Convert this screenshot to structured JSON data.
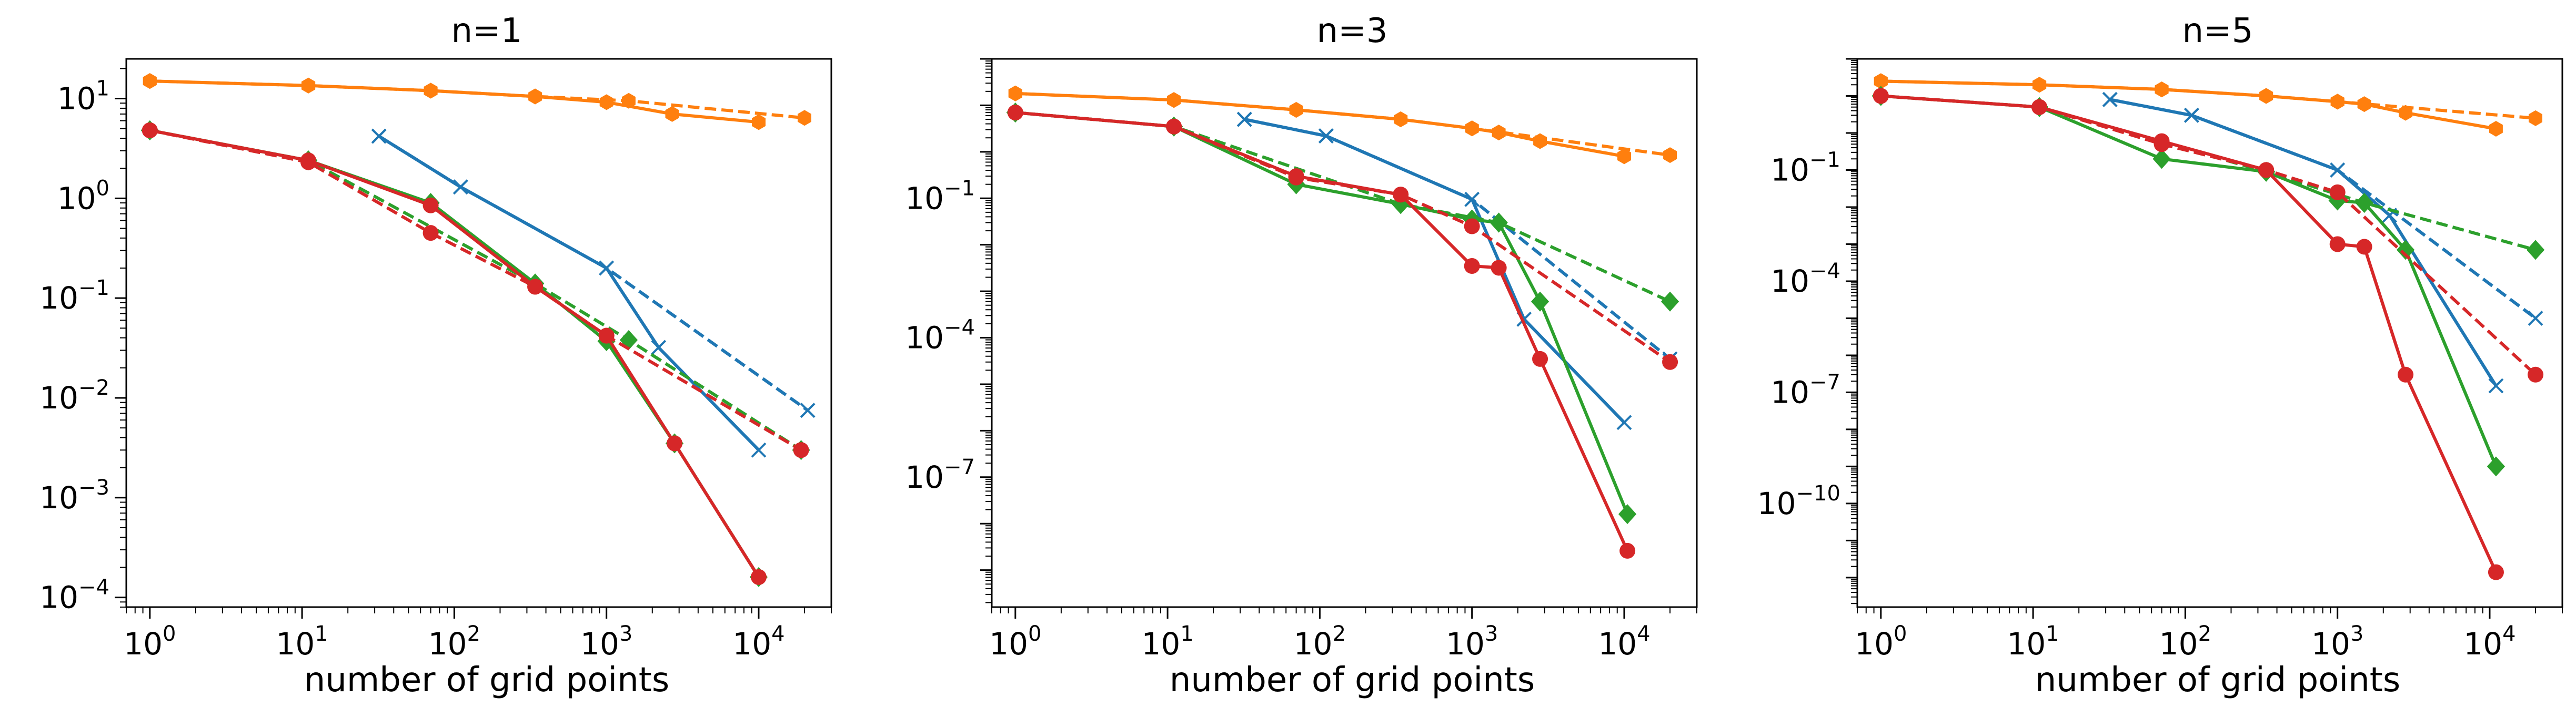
{
  "chart_data": [
    {
      "type": "line",
      "title": "n=1",
      "xlabel": "number of grid points",
      "ylabel": "",
      "xscale": "log",
      "yscale": "log",
      "xlim": [
        0.7,
        30000
      ],
      "ylim": [
        8e-05,
        25
      ],
      "x_ticks": [
        {
          "base": "10",
          "exp": "0",
          "value": 1
        },
        {
          "base": "10",
          "exp": "1",
          "value": 10
        },
        {
          "base": "10",
          "exp": "2",
          "value": 100
        },
        {
          "base": "10",
          "exp": "3",
          "value": 1000
        },
        {
          "base": "10",
          "exp": "4",
          "value": 10000
        }
      ],
      "y_ticks": [
        {
          "base": "10",
          "exp": "1",
          "value": 10
        },
        {
          "base": "10",
          "exp": "0",
          "value": 1
        },
        {
          "base": "10",
          "exp": "−1",
          "value": 0.1
        },
        {
          "base": "10",
          "exp": "−2",
          "value": 0.01
        },
        {
          "base": "10",
          "exp": "−3",
          "value": 0.001
        },
        {
          "base": "10",
          "exp": "−4",
          "value": 0.0001
        }
      ],
      "grid": false,
      "series": [
        {
          "color": "#ff7f0e",
          "dash": "solid",
          "marker": "hex",
          "x": [
            1,
            11,
            70,
            340,
            1000,
            2700,
            10000
          ],
          "y": [
            15,
            13.5,
            12,
            10.5,
            9.2,
            7,
            5.8
          ]
        },
        {
          "color": "#ff7f0e",
          "dash": "dashed",
          "marker": "hex",
          "x": [
            1,
            11,
            70,
            340,
            1400,
            20000
          ],
          "y": [
            15,
            13.5,
            12,
            10.5,
            9.5,
            6.4
          ]
        },
        {
          "color": "#1f77b4",
          "dash": "solid",
          "marker": "x",
          "x": [
            32,
            110,
            1000,
            2200,
            10000
          ],
          "y": [
            4.2,
            1.3,
            0.2,
            0.032,
            0.003
          ]
        },
        {
          "color": "#1f77b4",
          "dash": "dashed",
          "marker": "x",
          "x": [
            32,
            110,
            1000,
            21000
          ],
          "y": [
            4.2,
            1.3,
            0.2,
            0.0075
          ]
        },
        {
          "color": "#2ca02c",
          "dash": "solid",
          "marker": "diamond",
          "x": [
            1,
            11,
            70,
            340,
            1000,
            2800,
            10000
          ],
          "y": [
            4.8,
            2.4,
            0.9,
            0.14,
            0.037,
            0.0035,
            0.00016
          ]
        },
        {
          "color": "#2ca02c",
          "dash": "dashed",
          "marker": "diamond",
          "x": [
            1,
            11,
            340,
            1400,
            19000
          ],
          "y": [
            4.8,
            2.4,
            0.14,
            0.038,
            0.003
          ]
        },
        {
          "color": "#d62728",
          "dash": "solid",
          "marker": "circle",
          "x": [
            1,
            11,
            70,
            340,
            1000,
            2800,
            10000
          ],
          "y": [
            4.8,
            2.4,
            0.85,
            0.13,
            0.042,
            0.0035,
            0.00016
          ]
        },
        {
          "color": "#d62728",
          "dash": "dashed",
          "marker": "circle",
          "x": [
            1,
            11,
            70,
            340,
            1000,
            19000
          ],
          "y": [
            4.8,
            2.3,
            0.45,
            0.13,
            0.042,
            0.003
          ]
        }
      ]
    },
    {
      "type": "line",
      "title": "n=3",
      "xlabel": "number of grid points",
      "ylabel": "",
      "xscale": "log",
      "yscale": "log",
      "xlim": [
        0.7,
        30000
      ],
      "ylim": [
        1.6e-10,
        100
      ],
      "x_ticks": [
        {
          "base": "10",
          "exp": "0",
          "value": 1
        },
        {
          "base": "10",
          "exp": "1",
          "value": 10
        },
        {
          "base": "10",
          "exp": "2",
          "value": 100
        },
        {
          "base": "10",
          "exp": "3",
          "value": 1000
        },
        {
          "base": "10",
          "exp": "4",
          "value": 10000
        }
      ],
      "y_ticks": [
        {
          "base": "10",
          "exp": "−1",
          "value": 0.1
        },
        {
          "base": "10",
          "exp": "−4",
          "value": 0.0001
        },
        {
          "base": "10",
          "exp": "−7",
          "value": 1e-07
        }
      ],
      "grid": false,
      "series": [
        {
          "color": "#ff7f0e",
          "dash": "solid",
          "marker": "hex",
          "x": [
            1,
            11,
            70,
            340,
            1000,
            1500,
            2800,
            10000
          ],
          "y": [
            18,
            13,
            8,
            5,
            3.2,
            2.6,
            1.7,
            0.8
          ]
        },
        {
          "color": "#ff7f0e",
          "dash": "dashed",
          "marker": "hex",
          "x": [
            1,
            11,
            70,
            340,
            1000,
            20000
          ],
          "y": [
            18,
            13,
            8,
            5,
            3.2,
            0.85
          ]
        },
        {
          "color": "#1f77b4",
          "dash": "solid",
          "marker": "x",
          "x": [
            32,
            110,
            1000,
            2200,
            10000
          ],
          "y": [
            5,
            2.2,
            0.095,
            0.00025,
            1.5e-06
          ]
        },
        {
          "color": "#1f77b4",
          "dash": "dashed",
          "marker": "x",
          "x": [
            32,
            110,
            1000,
            20000
          ],
          "y": [
            5,
            2.2,
            0.095,
            3.5e-05
          ]
        },
        {
          "color": "#2ca02c",
          "dash": "solid",
          "marker": "diamond",
          "x": [
            1,
            11,
            70,
            340,
            1000,
            1500,
            2800,
            10500
          ],
          "y": [
            7,
            3.5,
            0.2,
            0.075,
            0.035,
            0.03,
            0.0006,
            1.6e-08
          ]
        },
        {
          "color": "#2ca02c",
          "dash": "dashed",
          "marker": "diamond",
          "x": [
            1,
            11,
            340,
            1500,
            20000
          ],
          "y": [
            7,
            3.5,
            0.075,
            0.03,
            0.0006
          ]
        },
        {
          "color": "#d62728",
          "dash": "solid",
          "marker": "circle",
          "x": [
            1,
            11,
            70,
            340,
            1000,
            1500,
            2800,
            10500
          ],
          "y": [
            7,
            3.5,
            0.3,
            0.12,
            0.0035,
            0.0032,
            3.5e-05,
            2.6e-09
          ]
        },
        {
          "color": "#d62728",
          "dash": "dashed",
          "marker": "circle",
          "x": [
            1,
            11,
            70,
            340,
            1000,
            20000
          ],
          "y": [
            7,
            3.5,
            0.28,
            0.12,
            0.025,
            3e-05
          ]
        }
      ]
    },
    {
      "type": "line",
      "title": "n=5",
      "xlabel": "number of grid points",
      "ylabel": "",
      "xscale": "log",
      "yscale": "log",
      "xlim": [
        0.7,
        30000
      ],
      "ylim": [
        1.6e-13,
        100
      ],
      "x_ticks": [
        {
          "base": "10",
          "exp": "0",
          "value": 1
        },
        {
          "base": "10",
          "exp": "1",
          "value": 10
        },
        {
          "base": "10",
          "exp": "2",
          "value": 100
        },
        {
          "base": "10",
          "exp": "3",
          "value": 1000
        },
        {
          "base": "10",
          "exp": "4",
          "value": 10000
        }
      ],
      "y_ticks": [
        {
          "base": "10",
          "exp": "−1",
          "value": 0.1
        },
        {
          "base": "10",
          "exp": "−4",
          "value": 0.0001
        },
        {
          "base": "10",
          "exp": "−7",
          "value": 1e-07
        },
        {
          "base": "10",
          "exp": "−10",
          "value": 1e-10
        }
      ],
      "grid": false,
      "series": [
        {
          "color": "#ff7f0e",
          "dash": "solid",
          "marker": "hex",
          "x": [
            1,
            11,
            70,
            340,
            1000,
            1500,
            2800,
            11000
          ],
          "y": [
            25,
            20,
            15,
            10,
            7,
            6,
            3.5,
            1.3
          ]
        },
        {
          "color": "#ff7f0e",
          "dash": "dashed",
          "marker": "hex",
          "x": [
            1,
            11,
            70,
            340,
            1000,
            20000
          ],
          "y": [
            25,
            20,
            15,
            10,
            7,
            2.5
          ]
        },
        {
          "color": "#1f77b4",
          "dash": "solid",
          "marker": "x",
          "x": [
            32,
            110,
            1000,
            2200,
            11000
          ],
          "y": [
            8,
            3,
            0.1,
            0.006,
            1.5e-07
          ]
        },
        {
          "color": "#1f77b4",
          "dash": "dashed",
          "marker": "x",
          "x": [
            32,
            110,
            1000,
            20000
          ],
          "y": [
            8,
            3,
            0.1,
            1e-05
          ]
        },
        {
          "color": "#2ca02c",
          "dash": "solid",
          "marker": "diamond",
          "x": [
            1,
            11,
            70,
            340,
            1000,
            1500,
            2800,
            11000
          ],
          "y": [
            10,
            5,
            0.2,
            0.09,
            0.015,
            0.013,
            0.0007,
            1e-09
          ]
        },
        {
          "color": "#2ca02c",
          "dash": "dashed",
          "marker": "diamond",
          "x": [
            1,
            11,
            340,
            1500,
            20000
          ],
          "y": [
            10,
            5,
            0.09,
            0.013,
            0.0007
          ]
        },
        {
          "color": "#d62728",
          "dash": "solid",
          "marker": "circle",
          "x": [
            1,
            11,
            70,
            340,
            1000,
            1500,
            2800,
            11000
          ],
          "y": [
            10,
            5,
            0.6,
            0.1,
            0.001,
            0.00085,
            3e-07,
            1.4e-12
          ]
        },
        {
          "color": "#d62728",
          "dash": "dashed",
          "marker": "circle",
          "x": [
            1,
            11,
            70,
            340,
            1000,
            20000
          ],
          "y": [
            10,
            5,
            0.5,
            0.1,
            0.025,
            3e-07
          ]
        }
      ]
    }
  ]
}
